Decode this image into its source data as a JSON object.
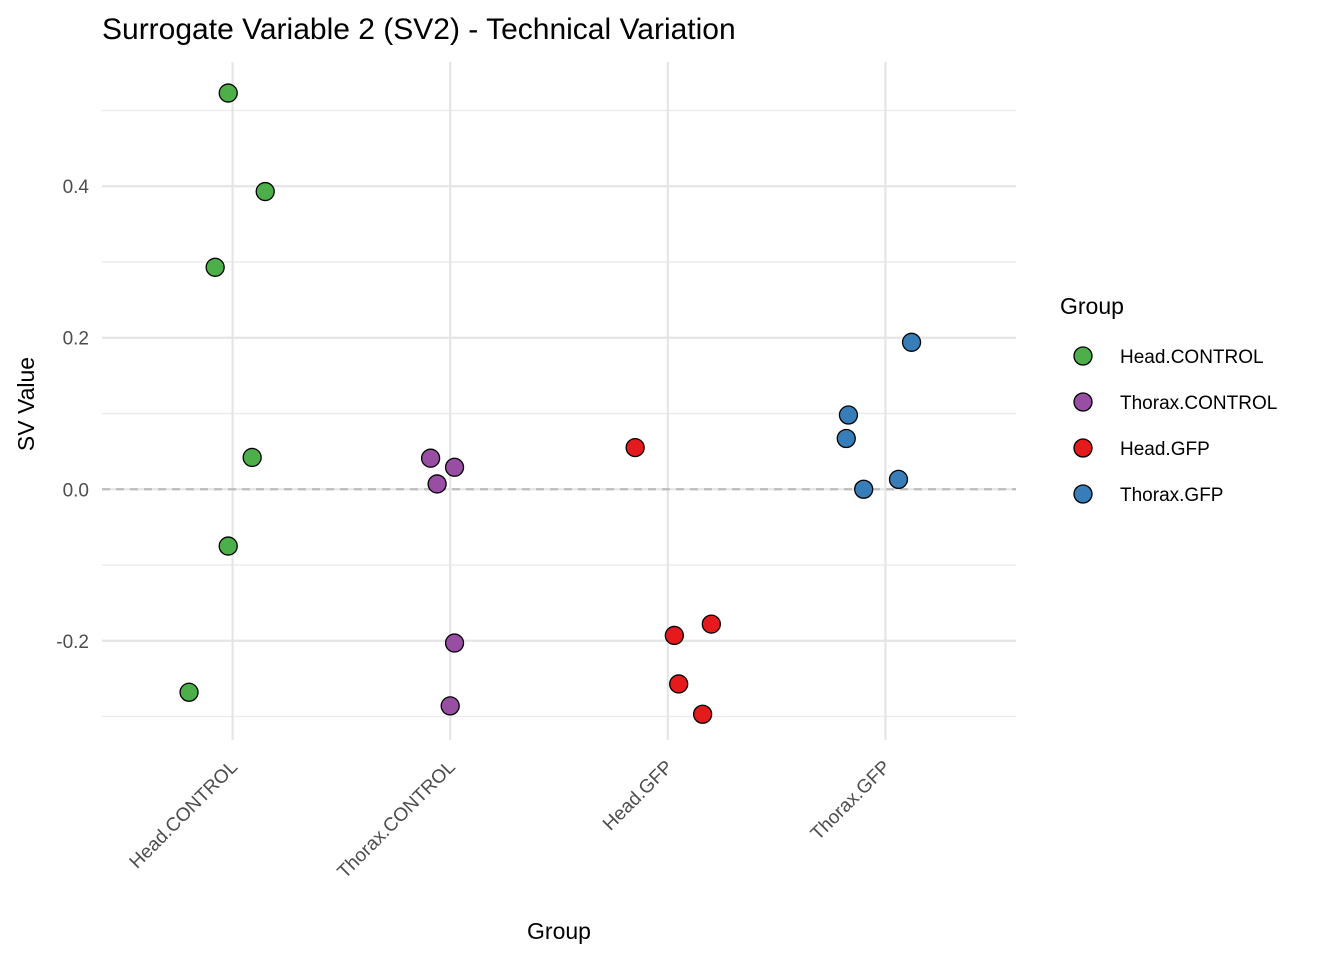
{
  "chart_data": {
    "type": "scatter",
    "title": "Surrogate Variable 2 (SV2) - Technical Variation",
    "xlabel": "Group",
    "ylabel": "SV Value",
    "categories": [
      "Head.CONTROL",
      "Thorax.CONTROL",
      "Head.GFP",
      "Thorax.GFP"
    ],
    "ylim": [
      -0.331,
      0.564
    ],
    "yticks": [
      -0.2,
      0.0,
      0.2,
      0.4
    ],
    "ytick_labels": [
      "-0.2",
      "0.0",
      "0.2",
      "0.4"
    ],
    "grid": true,
    "reference_line": {
      "y": 0.0,
      "style": "dashed",
      "color": "#bdbdbd"
    },
    "legend": {
      "title": "Group",
      "placement": "right"
    },
    "series": [
      {
        "name": "Head.CONTROL",
        "color": "#4DAF4A",
        "points": [
          {
            "y": 0.523,
            "jitter": -0.02
          },
          {
            "y": 0.393,
            "jitter": 0.15
          },
          {
            "y": 0.293,
            "jitter": -0.08
          },
          {
            "y": 0.042,
            "jitter": 0.09
          },
          {
            "y": -0.075,
            "jitter": -0.02
          },
          {
            "y": -0.268,
            "jitter": -0.2
          }
        ]
      },
      {
        "name": "Thorax.CONTROL",
        "color": "#984EA3",
        "points": [
          {
            "y": 0.041,
            "jitter": -0.09
          },
          {
            "y": 0.029,
            "jitter": 0.02
          },
          {
            "y": 0.007,
            "jitter": -0.06
          },
          {
            "y": -0.203,
            "jitter": 0.02
          },
          {
            "y": -0.286,
            "jitter": 0.0
          }
        ]
      },
      {
        "name": "Head.GFP",
        "color": "#E41A1C",
        "points": [
          {
            "y": 0.055,
            "jitter": -0.15
          },
          {
            "y": -0.193,
            "jitter": 0.03
          },
          {
            "y": -0.178,
            "jitter": 0.2
          },
          {
            "y": -0.257,
            "jitter": 0.05
          },
          {
            "y": -0.297,
            "jitter": 0.16
          }
        ]
      },
      {
        "name": "Thorax.GFP",
        "color": "#377EB8",
        "points": [
          {
            "y": 0.194,
            "jitter": 0.12
          },
          {
            "y": 0.098,
            "jitter": -0.17
          },
          {
            "y": 0.067,
            "jitter": -0.18
          },
          {
            "y": 0.013,
            "jitter": 0.06
          },
          {
            "y": 0.0,
            "jitter": -0.1
          }
        ]
      }
    ]
  }
}
